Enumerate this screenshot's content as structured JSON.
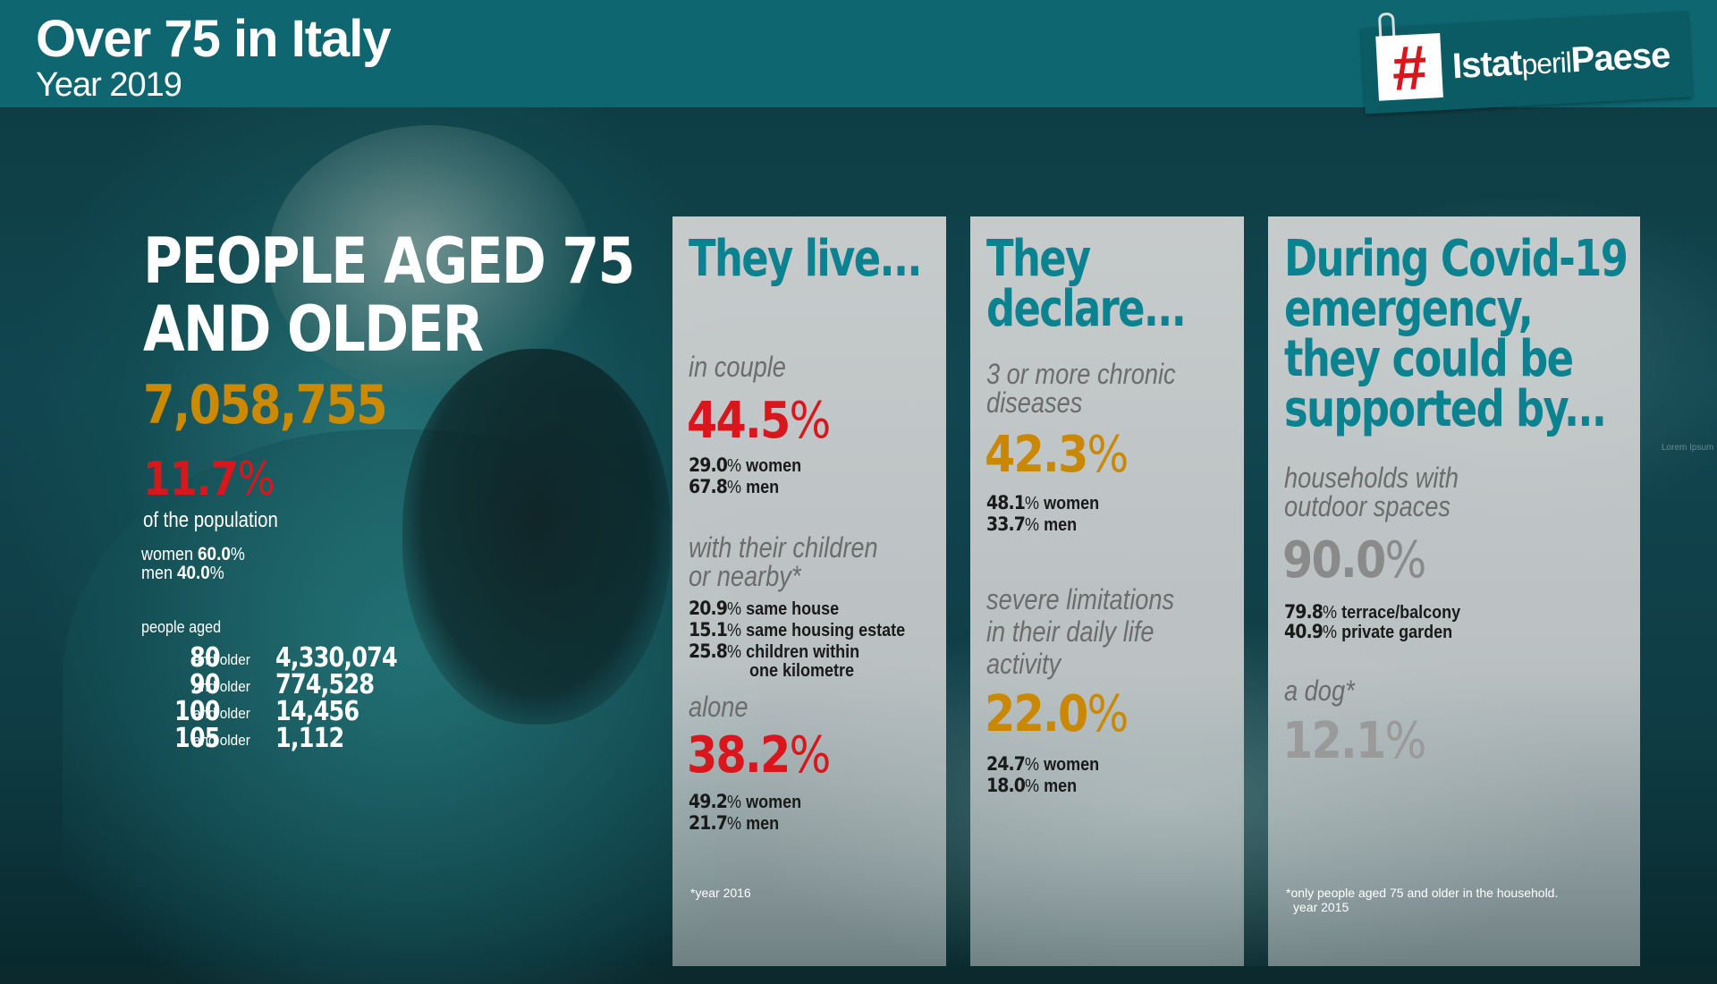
{
  "header": {
    "title": "Over 75 in Italy",
    "subtitle": "Year 2019"
  },
  "logo": {
    "hash": "#",
    "part1": "Istat",
    "part2": "peril",
    "part3": "Paese"
  },
  "left": {
    "title_line1": "PEOPLE AGED 75",
    "title_line2": "AND OLDER",
    "total": "7,058,755",
    "population_pct": "11.7",
    "pct_sign": "%",
    "population_label": "of the population",
    "women_label": "women",
    "women_value": "60.0",
    "men_label": "men",
    "men_value": "40.0",
    "aged_label": "people aged",
    "and_older": "and older",
    "age_rows": [
      {
        "age": "80",
        "value": "4,330,074"
      },
      {
        "age": "90",
        "value": "774,528"
      },
      {
        "age": "100",
        "value": "14,456"
      },
      {
        "age": "105",
        "value": "1,112"
      }
    ]
  },
  "panel1": {
    "heading": "They live...",
    "couple_label": "in couple",
    "couple_value": "44.5",
    "couple_women": "29.0",
    "couple_men": "67.8",
    "children_label_line1": "with their children",
    "children_label_line2": "or nearby*",
    "children_rows": [
      {
        "value": "20.9",
        "label": "same house"
      },
      {
        "value": "15.1",
        "label": "same housing estate"
      },
      {
        "value": "25.8",
        "label": "children within"
      }
    ],
    "children_extra": "one kilometre",
    "alone_label": "alone",
    "alone_value": "38.2",
    "alone_women": "49.2",
    "alone_men": "21.7",
    "women_word": "women",
    "men_word": "men",
    "footnote": "*year 2016"
  },
  "panel2": {
    "heading_line1": "They",
    "heading_line2": "declare...",
    "chronic_label_line1": "3 or more chronic",
    "chronic_label_line2": "diseases",
    "chronic_value": "42.3",
    "chronic_women": "48.1",
    "chronic_men": "33.7",
    "limit_label_line1": "severe limitations",
    "limit_label_line2": "in their daily life",
    "limit_label_line3": "activity",
    "limit_value": "22.0",
    "limit_women": "24.7",
    "limit_men": "18.0",
    "women_word": "women",
    "men_word": "men"
  },
  "panel3": {
    "heading_line1": "During Covid-19",
    "heading_line2": "emergency,",
    "heading_line3": "they could be",
    "heading_line4": "supported by...",
    "outdoor_label_line1": "households with",
    "outdoor_label_line2": "outdoor spaces",
    "outdoor_value": "90.0",
    "terrace_value": "79.8",
    "terrace_label": "terrace/balcony",
    "garden_value": "40.9",
    "garden_label": "private garden",
    "dog_label": "a dog*",
    "dog_value": "12.1",
    "footnote_line1": "*only people aged 75 and older in the household.",
    "footnote_line2": "year 2015"
  },
  "lorem": "Lorem Ipsum",
  "colors": {
    "header_bg": "#0e6670",
    "accent_teal": "#0b8290",
    "red": "#d9161b",
    "gold": "#c98800",
    "gray": "#8a8a8a"
  }
}
